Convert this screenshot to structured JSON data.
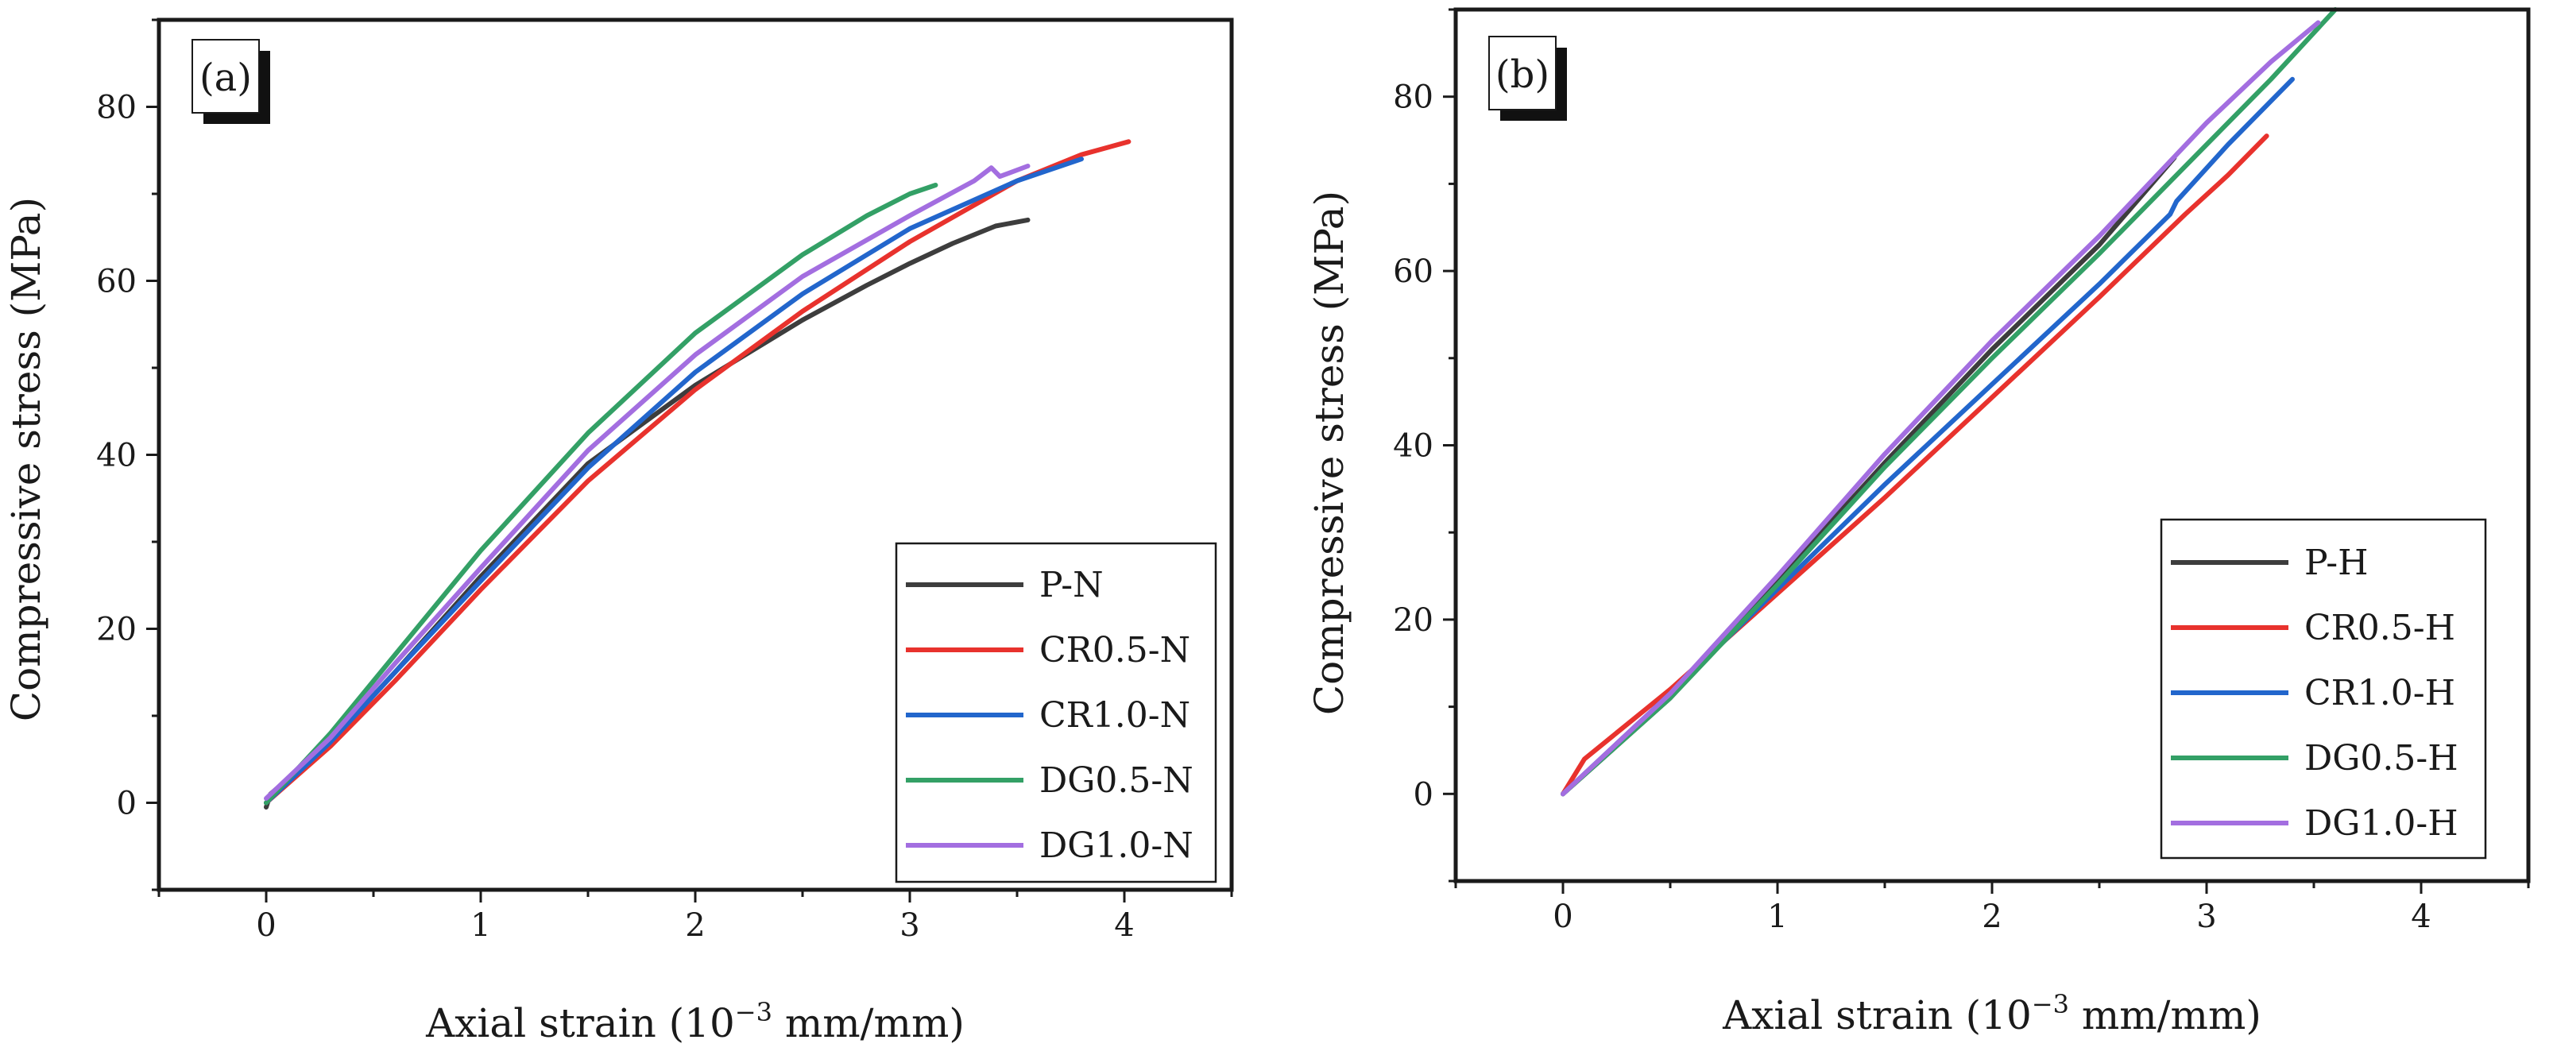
{
  "chart_data": [
    {
      "type": "line",
      "panel_label": "(a)",
      "xlabel_main": "Axial strain (10",
      "xlabel_sup": "−3",
      "xlabel_unit": " mm/mm)",
      "ylabel": "Compressive stress (MPa)",
      "xlim": [
        -0.5,
        4.5
      ],
      "ylim": [
        -10,
        90
      ],
      "x_ticks": [
        0,
        1,
        2,
        3,
        4
      ],
      "y_ticks": [
        0,
        20,
        40,
        60,
        80
      ],
      "legend_position": "bottom-right",
      "series": [
        {
          "name": "P-N",
          "color": "#3d3d3d",
          "points": [
            [
              0,
              -0.5
            ],
            [
              0.02,
              1
            ],
            [
              0.3,
              7
            ],
            [
              0.6,
              15
            ],
            [
              1.0,
              26
            ],
            [
              1.5,
              39
            ],
            [
              2.0,
              48
            ],
            [
              2.5,
              55.5
            ],
            [
              2.8,
              59.5
            ],
            [
              3.0,
              62
            ],
            [
              3.2,
              64.3
            ],
            [
              3.4,
              66.3
            ],
            [
              3.55,
              67
            ]
          ]
        },
        {
          "name": "CR0.5-N",
          "color": "#e8322d",
          "points": [
            [
              0,
              0
            ],
            [
              0.3,
              6.5
            ],
            [
              0.6,
              14
            ],
            [
              1.0,
              24.5
            ],
            [
              1.5,
              37
            ],
            [
              2.0,
              47.5
            ],
            [
              2.5,
              56.5
            ],
            [
              3.0,
              64.5
            ],
            [
              3.5,
              71.5
            ],
            [
              3.8,
              74.5
            ],
            [
              4.02,
              76
            ]
          ]
        },
        {
          "name": "CR1.0-N",
          "color": "#2266cc",
          "points": [
            [
              0,
              0
            ],
            [
              0.3,
              7
            ],
            [
              0.6,
              15
            ],
            [
              1.0,
              25.5
            ],
            [
              1.5,
              38.5
            ],
            [
              2.0,
              49.5
            ],
            [
              2.5,
              58.5
            ],
            [
              3.0,
              66
            ],
            [
              3.5,
              71.5
            ],
            [
              3.8,
              74
            ]
          ]
        },
        {
          "name": "DG0.5-N",
          "color": "#33a066",
          "points": [
            [
              0,
              0
            ],
            [
              0.3,
              8
            ],
            [
              0.6,
              17
            ],
            [
              1.0,
              29
            ],
            [
              1.5,
              42.5
            ],
            [
              2.0,
              54
            ],
            [
              2.5,
              63
            ],
            [
              2.8,
              67.5
            ],
            [
              3.0,
              70
            ],
            [
              3.12,
              71
            ]
          ]
        },
        {
          "name": "DG1.0-N",
          "color": "#a36ee0",
          "points": [
            [
              0,
              0.5
            ],
            [
              0.3,
              7.5
            ],
            [
              0.6,
              16
            ],
            [
              1.0,
              27
            ],
            [
              1.5,
              40.5
            ],
            [
              2.0,
              51.5
            ],
            [
              2.5,
              60.5
            ],
            [
              3.0,
              67.5
            ],
            [
              3.3,
              71.5
            ],
            [
              3.38,
              73
            ],
            [
              3.42,
              72
            ],
            [
              3.55,
              73.2
            ]
          ]
        }
      ]
    },
    {
      "type": "line",
      "panel_label": "(b)",
      "xlabel_main": "Axial strain (10",
      "xlabel_sup": "−3",
      "xlabel_unit": " mm/mm)",
      "ylabel": "Compressive stress (MPa)",
      "xlim": [
        -0.5,
        4.5
      ],
      "ylim": [
        -10,
        90
      ],
      "x_ticks": [
        0,
        1,
        2,
        3,
        4
      ],
      "y_ticks": [
        0,
        20,
        40,
        60,
        80
      ],
      "legend_position": "bottom-right",
      "series": [
        {
          "name": "P-H",
          "color": "#3d3d3d",
          "points": [
            [
              0,
              0
            ],
            [
              0.5,
              11
            ],
            [
              1.0,
              24.5
            ],
            [
              1.5,
              38
            ],
            [
              2.0,
              51
            ],
            [
              2.5,
              63
            ],
            [
              2.85,
              73
            ]
          ]
        },
        {
          "name": "CR0.5-H",
          "color": "#e8322d",
          "points": [
            [
              0,
              0
            ],
            [
              0.1,
              4
            ],
            [
              0.5,
              12
            ],
            [
              1.0,
              23
            ],
            [
              1.5,
              34
            ],
            [
              2.0,
              45.5
            ],
            [
              2.5,
              57
            ],
            [
              2.9,
              66.5
            ],
            [
              3.1,
              71
            ],
            [
              3.28,
              75.5
            ]
          ]
        },
        {
          "name": "CR1.0-H",
          "color": "#2266cc",
          "points": [
            [
              0,
              0
            ],
            [
              0.5,
              11.5
            ],
            [
              1.0,
              23.5
            ],
            [
              1.5,
              35.5
            ],
            [
              2.0,
              47
            ],
            [
              2.5,
              58.5
            ],
            [
              2.83,
              66.5
            ],
            [
              2.86,
              68
            ],
            [
              3.1,
              74.5
            ],
            [
              3.4,
              82
            ]
          ]
        },
        {
          "name": "DG0.5-H",
          "color": "#33a066",
          "points": [
            [
              0,
              0
            ],
            [
              0.5,
              11
            ],
            [
              1.0,
              24
            ],
            [
              1.5,
              37.5
            ],
            [
              2.0,
              50
            ],
            [
              2.5,
              62
            ],
            [
              3.0,
              74.5
            ],
            [
              3.3,
              82
            ],
            [
              3.6,
              90
            ]
          ]
        },
        {
          "name": "DG1.0-H",
          "color": "#a36ee0",
          "points": [
            [
              0,
              0
            ],
            [
              0.5,
              11.5
            ],
            [
              1.0,
              25
            ],
            [
              1.5,
              39
            ],
            [
              2.0,
              52
            ],
            [
              2.5,
              64
            ],
            [
              3.0,
              77
            ],
            [
              3.3,
              84
            ],
            [
              3.52,
              88.5
            ]
          ]
        }
      ]
    }
  ]
}
